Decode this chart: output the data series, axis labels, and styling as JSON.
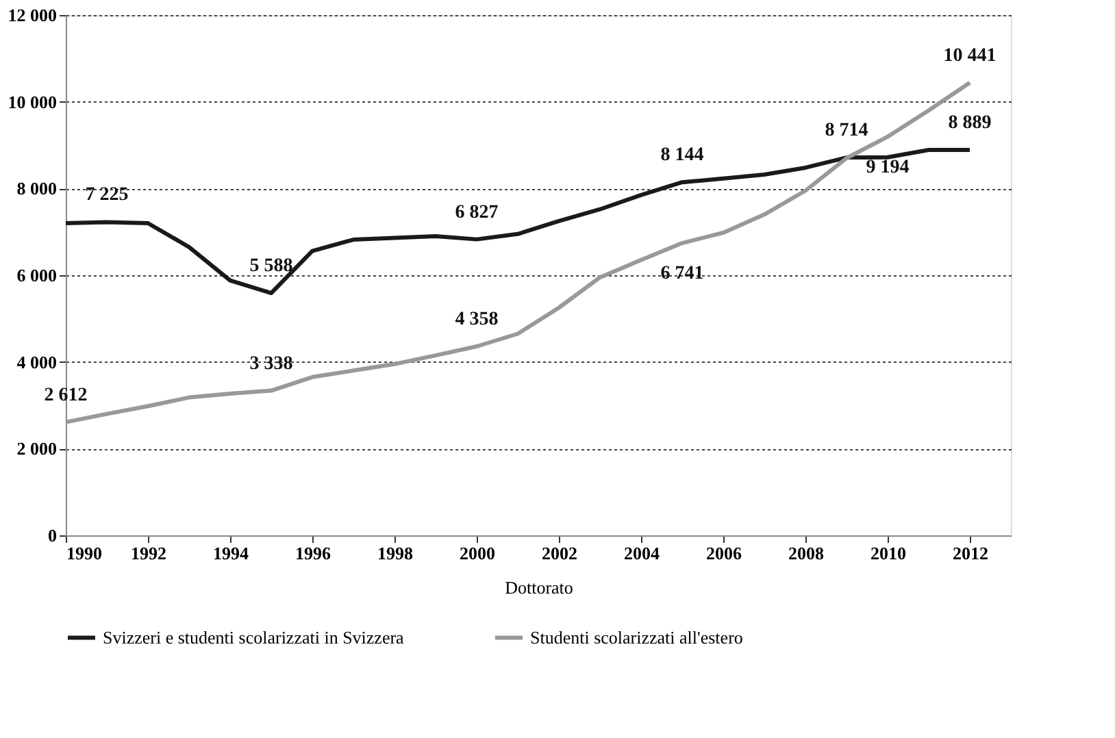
{
  "chart_data": {
    "type": "line",
    "xlabel": "Dottorato",
    "x": [
      1990,
      1991,
      1992,
      1993,
      1994,
      1995,
      1996,
      1997,
      1998,
      1999,
      2000,
      2001,
      2002,
      2003,
      2004,
      2005,
      2006,
      2007,
      2008,
      2009,
      2010,
      2011,
      2012
    ],
    "series": [
      {
        "name": "Svizzeri e studenti scolarizzati in Svizzera",
        "color": "#1a1a1a",
        "values": [
          7200,
          7225,
          7200,
          6650,
          5880,
          5588,
          6560,
          6820,
          6860,
          6900,
          6827,
          6950,
          7250,
          7520,
          7850,
          8144,
          8230,
          8320,
          8480,
          8714,
          8720,
          8890,
          8889
        ],
        "value_labels": [
          null,
          "7 225",
          null,
          null,
          null,
          "5 588",
          null,
          null,
          null,
          null,
          "6 827",
          null,
          null,
          null,
          null,
          "8 144",
          null,
          null,
          null,
          "8 714",
          null,
          null,
          "8 889"
        ]
      },
      {
        "name": "Studenti scolarizzati all'estero",
        "color": "#999999",
        "values": [
          2612,
          2800,
          2980,
          3180,
          3270,
          3338,
          3650,
          3800,
          3950,
          4150,
          4358,
          4650,
          5250,
          5950,
          6350,
          6741,
          6980,
          7400,
          7950,
          8700,
          9194,
          9800,
          10441
        ],
        "value_labels": [
          "2 612",
          null,
          null,
          null,
          null,
          "3 338",
          null,
          null,
          null,
          null,
          "4 358",
          null,
          null,
          null,
          null,
          "6 741",
          null,
          null,
          null,
          null,
          "9 194",
          null,
          "10 441"
        ]
      }
    ],
    "xlim": [
      1990,
      2013
    ],
    "xticks": [
      1990,
      1992,
      1994,
      1996,
      1998,
      2000,
      2002,
      2004,
      2006,
      2008,
      2010,
      2012
    ],
    "ylim": [
      0,
      12000
    ],
    "yticks": [
      {
        "value": 0,
        "label": "0"
      },
      {
        "value": 2000,
        "label": "2 000"
      },
      {
        "value": 4000,
        "label": "4 000"
      },
      {
        "value": 6000,
        "label": "6 000"
      },
      {
        "value": 8000,
        "label": "8 000"
      },
      {
        "value": 10000,
        "label": "10 000"
      },
      {
        "value": 12000,
        "label": "12 000"
      }
    ],
    "grid": "y",
    "legend": "bottom",
    "marker": "none",
    "line_style": "solid"
  }
}
